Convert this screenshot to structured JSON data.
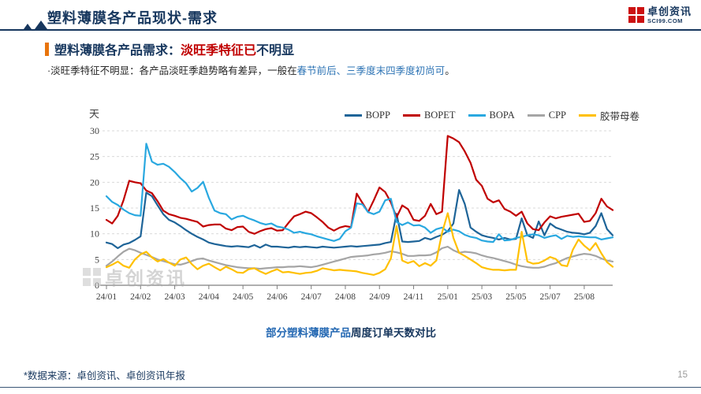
{
  "page": {
    "title": "塑料薄膜各产品现状-需求",
    "page_number": "15",
    "footer_note": "*数据来源：卓创资讯、卓创资讯年报"
  },
  "logo": {
    "name": "卓创资讯",
    "domain": "SCI99.COM"
  },
  "section": {
    "heading_prefix": "塑料薄膜各产品需求：",
    "heading_highlight": "淡旺季特征已",
    "heading_suffix": "不明显",
    "bullet_prefix": "·淡旺季特征不明显：各产品淡旺季趋势略有差异，一般在",
    "bullet_highlight": "春节前后、三季度末四季度初尚可",
    "bullet_suffix": "。"
  },
  "caption": {
    "part1": "部分塑料薄膜产品",
    "part2": "周度订单天数对比"
  },
  "watermark": "卓创资讯",
  "colors": {
    "title_navy": "#17375E",
    "accent_red": "#C00000",
    "accent_blue": "#2E74B5",
    "section_bar_orange": "#E8740C",
    "axis_gray": "#7F7F7F",
    "grid_gray": "#D9D9D9"
  },
  "chart_data": {
    "type": "line",
    "title": "部分塑料薄膜产品周度订单天数对比",
    "ylabel": "天",
    "xlabel": "",
    "ylim": [
      0,
      30
    ],
    "ytick_step": 5,
    "grid": "horizontal-dashed",
    "legend_position": "top-right",
    "n_points": 90,
    "x_unit": "week",
    "x_tick_indices": [
      0,
      6,
      12,
      18,
      24,
      30,
      36,
      42,
      48,
      54,
      60,
      66,
      72,
      78,
      84
    ],
    "x_tick_labels": [
      "24/01",
      "24/02",
      "24/03",
      "24/04",
      "24/05",
      "24/06",
      "24/07",
      "24/08",
      "24/09",
      "24/11",
      "25/01",
      "25/03",
      "25/05",
      "25/07",
      "25/08"
    ],
    "series": [
      {
        "name": "BOPP",
        "color": "#1E6498",
        "values": [
          8.3,
          8.0,
          7.2,
          7.9,
          8.2,
          8.8,
          9.5,
          18.0,
          17.3,
          15.5,
          13.8,
          12.7,
          12.2,
          11.5,
          10.7,
          10.0,
          9.4,
          8.9,
          8.3,
          8.0,
          7.8,
          7.6,
          7.5,
          7.6,
          7.5,
          7.4,
          7.8,
          7.3,
          7.9,
          7.5,
          7.5,
          7.4,
          7.3,
          7.5,
          7.4,
          7.5,
          7.4,
          7.3,
          7.5,
          7.4,
          7.3,
          7.4,
          7.5,
          7.6,
          7.5,
          7.6,
          7.7,
          7.8,
          7.9,
          8.2,
          8.4,
          13.9,
          8.5,
          8.4,
          8.5,
          8.6,
          9.2,
          8.9,
          9.4,
          9.8,
          10.5,
          12.0,
          18.5,
          15.8,
          11.2,
          10.4,
          9.7,
          9.4,
          9.2,
          8.9,
          9.2,
          8.9,
          9.0,
          13.0,
          9.7,
          9.2,
          12.4,
          9.7,
          12.0,
          11.2,
          10.8,
          10.4,
          10.2,
          10.1,
          9.9,
          10.2,
          11.5,
          14.0,
          10.9,
          9.7
        ]
      },
      {
        "name": "BOPET",
        "color": "#C00000",
        "values": [
          12.7,
          12.0,
          13.5,
          16.5,
          20.3,
          20.0,
          19.8,
          18.4,
          17.9,
          16.3,
          14.5,
          13.8,
          13.5,
          13.1,
          12.9,
          12.6,
          12.3,
          11.4,
          11.7,
          11.8,
          11.8,
          11.0,
          10.7,
          11.3,
          11.4,
          10.4,
          10.0,
          10.5,
          10.9,
          11.1,
          10.6,
          10.7,
          12.1,
          13.4,
          13.8,
          14.3,
          14.0,
          13.2,
          12.3,
          11.2,
          10.6,
          11.2,
          11.5,
          11.3,
          17.8,
          16.0,
          14.2,
          16.5,
          19.0,
          18.1,
          16.1,
          13.2,
          15.5,
          14.8,
          12.7,
          12.5,
          13.5,
          15.8,
          13.8,
          14.3,
          29.0,
          28.5,
          27.8,
          26.0,
          23.8,
          20.5,
          19.3,
          16.8,
          16.1,
          16.5,
          14.8,
          14.3,
          13.5,
          14.3,
          12.0,
          10.9,
          10.7,
          12.2,
          13.4,
          13.0,
          13.3,
          13.5,
          13.7,
          13.9,
          12.3,
          12.5,
          14.0,
          16.8,
          15.3,
          14.6
        ]
      },
      {
        "name": "BOPA",
        "color": "#29A8E0",
        "values": [
          17.3,
          16.2,
          15.6,
          14.7,
          14.0,
          13.6,
          13.5,
          27.5,
          24.0,
          23.4,
          23.6,
          23.0,
          22.0,
          20.8,
          19.8,
          18.2,
          18.9,
          20.1,
          17.0,
          14.5,
          14.0,
          13.8,
          12.8,
          13.3,
          13.5,
          13.0,
          12.6,
          12.1,
          11.8,
          12.0,
          11.4,
          11.2,
          10.8,
          10.2,
          10.4,
          10.1,
          9.9,
          9.5,
          9.2,
          8.9,
          8.6,
          9.0,
          10.5,
          11.2,
          15.9,
          15.7,
          14.2,
          13.8,
          14.3,
          16.5,
          16.8,
          12.3,
          11.7,
          12.2,
          11.6,
          11.7,
          11.2,
          10.2,
          10.9,
          11.2,
          10.4,
          10.8,
          10.5,
          9.8,
          9.4,
          9.2,
          8.7,
          8.5,
          8.4,
          9.9,
          8.7,
          8.8,
          9.2,
          9.4,
          9.7,
          9.9,
          9.7,
          9.2,
          9.5,
          9.7,
          9.0,
          9.6,
          9.4,
          9.5,
          9.4,
          9.3,
          9.3,
          8.9,
          9.1,
          9.3
        ]
      },
      {
        "name": "CPP",
        "color": "#A5A5A5",
        "values": [
          3.8,
          4.6,
          5.6,
          6.5,
          7.1,
          6.8,
          6.3,
          5.9,
          5.5,
          5.0,
          4.7,
          4.4,
          4.1,
          4.0,
          4.3,
          4.7,
          5.1,
          5.2,
          4.8,
          4.5,
          4.2,
          3.9,
          3.7,
          3.5,
          3.4,
          3.3,
          3.3,
          3.2,
          3.3,
          3.4,
          3.5,
          3.5,
          3.6,
          3.6,
          3.7,
          3.6,
          3.5,
          3.7,
          4.0,
          4.3,
          4.6,
          4.9,
          5.2,
          5.5,
          5.6,
          5.7,
          5.8,
          6.0,
          6.1,
          6.3,
          6.6,
          6.4,
          6.1,
          5.7,
          5.7,
          5.8,
          5.8,
          5.9,
          6.4,
          7.2,
          7.5,
          6.8,
          6.3,
          6.5,
          6.4,
          6.2,
          5.8,
          5.5,
          5.3,
          5.0,
          4.7,
          4.4,
          4.0,
          3.7,
          3.5,
          3.4,
          3.4,
          3.6,
          4.0,
          4.3,
          4.8,
          5.3,
          5.6,
          5.9,
          6.1,
          6.0,
          5.7,
          5.2,
          4.8,
          4.6
        ]
      },
      {
        "name": "胶带母卷",
        "color": "#FFC000",
        "values": [
          3.5,
          4.0,
          4.6,
          3.8,
          3.4,
          5.0,
          6.0,
          6.5,
          5.4,
          4.6,
          5.1,
          4.4,
          3.8,
          5.0,
          5.4,
          4.1,
          3.1,
          3.8,
          4.2,
          3.5,
          2.9,
          3.6,
          3.1,
          2.5,
          2.4,
          3.1,
          3.3,
          2.7,
          2.2,
          2.7,
          3.1,
          2.5,
          2.6,
          2.4,
          2.2,
          2.4,
          2.5,
          2.8,
          3.3,
          3.1,
          2.9,
          3.0,
          2.9,
          2.8,
          2.7,
          2.4,
          2.2,
          2.0,
          2.4,
          3.1,
          5.2,
          11.5,
          4.8,
          4.3,
          4.7,
          3.7,
          4.3,
          3.8,
          4.8,
          10.2,
          14.0,
          9.2,
          6.3,
          5.7,
          5.0,
          4.3,
          3.5,
          3.2,
          3.0,
          3.0,
          2.9,
          3.0,
          3.0,
          10.4,
          4.6,
          4.2,
          4.3,
          4.8,
          5.5,
          5.1,
          3.9,
          3.7,
          6.9,
          8.9,
          7.7,
          6.8,
          8.2,
          6.2,
          4.5,
          3.6
        ]
      }
    ]
  }
}
